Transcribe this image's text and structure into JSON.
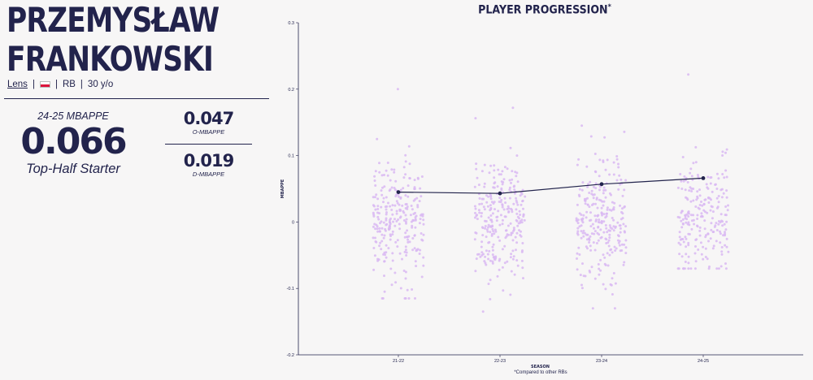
{
  "player": {
    "name_line1": "PRZEMYSŁAW",
    "name_line2": "FRANKOWSKI",
    "club": "Lens",
    "flag": {
      "top": "#ffffff",
      "bottom": "#dc143c"
    },
    "position": "RB",
    "age": "30 y/o",
    "separator": "|"
  },
  "summary": {
    "season_label": "24-25 MBAPPE",
    "value": "0.066",
    "tier": "Top-Half Starter",
    "o_value": "0.047",
    "o_label": "O-MBAPPE",
    "d_value": "0.019",
    "d_label": "D-MBAPPE"
  },
  "footnote": "*Compared to other RBs",
  "colors": {
    "primary": "#22234c",
    "dot": "#d9b8f2",
    "background": "#f7f6f6"
  },
  "chart_data": {
    "type": "scatter",
    "title": "PLAYER PROGRESSION",
    "title_mark": "*",
    "xlabel": "SEASON",
    "ylabel": "MBAPPE",
    "ylim": [
      -0.2,
      0.3
    ],
    "yticks": [
      "-0.2",
      "-0.1",
      "0",
      "0.1",
      "0.2",
      "0.3"
    ],
    "categories": [
      "21-22",
      "22-23",
      "23-24",
      "24-25"
    ],
    "distribution": [
      {
        "season": "21-22",
        "mean": 0.0,
        "sd": 0.045,
        "min": -0.115,
        "max": 0.2,
        "count": 270
      },
      {
        "season": "22-23",
        "mean": 0.0,
        "sd": 0.045,
        "min": -0.135,
        "max": 0.172,
        "count": 270
      },
      {
        "season": "23-24",
        "mean": 0.005,
        "sd": 0.048,
        "min": -0.13,
        "max": 0.145,
        "count": 270
      },
      {
        "season": "24-25",
        "mean": 0.015,
        "sd": 0.04,
        "min": -0.07,
        "max": 0.222,
        "count": 230
      }
    ],
    "series": [
      {
        "values": [
          0.045,
          0.043,
          0.057,
          0.066
        ]
      }
    ],
    "grid": false,
    "legend": "none"
  }
}
